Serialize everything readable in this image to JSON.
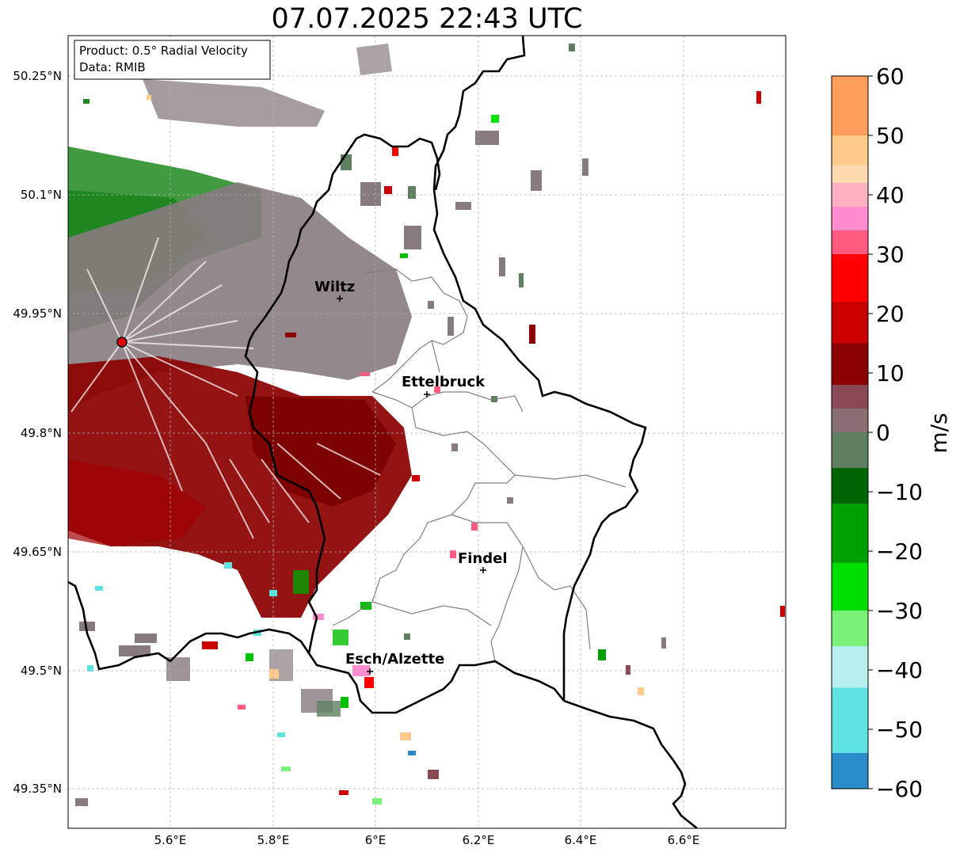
{
  "title": "07.07.2025 22:43 UTC",
  "info_box": {
    "product": "Product: 0.5° Radial Velocity",
    "data": "Data: RMIB"
  },
  "latitude_labels": [
    "50.25°N",
    "50.1°N",
    "49.95°N",
    "49.8°N",
    "49.65°N",
    "49.5°N",
    "49.35°N"
  ],
  "longitude_labels": [
    "5.6°E",
    "5.8°E",
    "6°E",
    "6.2°E",
    "6.4°E",
    "6.6°E"
  ],
  "cities": [
    {
      "name": "Wiltz"
    },
    {
      "name": "Ettelbruck"
    },
    {
      "name": "Findel"
    },
    {
      "name": "Esch/Alzette"
    }
  ],
  "radar_site": "radar-site-marker",
  "colorbar": {
    "unit": "m/s",
    "ticks": [
      "60",
      "50",
      "40",
      "30",
      "20",
      "10",
      "0",
      "−10",
      "−20",
      "−30",
      "−40",
      "−50",
      "−60"
    ],
    "range": [
      -60,
      60
    ],
    "bands": [
      {
        "from": 50,
        "to": 60,
        "color": "#ff9e5a"
      },
      {
        "from": 45,
        "to": 50,
        "color": "#ffc98a"
      },
      {
        "from": 42,
        "to": 45,
        "color": "#ffd9b0"
      },
      {
        "from": 38,
        "to": 42,
        "color": "#ffb0c0"
      },
      {
        "from": 34,
        "to": 38,
        "color": "#ff8ccf"
      },
      {
        "from": 30,
        "to": 34,
        "color": "#ff5a80"
      },
      {
        "from": 22,
        "to": 30,
        "color": "#ff0000"
      },
      {
        "from": 15,
        "to": 22,
        "color": "#cc0000"
      },
      {
        "from": 8,
        "to": 15,
        "color": "#8b0000"
      },
      {
        "from": 4,
        "to": 8,
        "color": "#8a4a55"
      },
      {
        "from": 0,
        "to": 4,
        "color": "#876f74"
      },
      {
        "from": -6,
        "to": 0,
        "color": "#5f8060"
      },
      {
        "from": -12,
        "to": -6,
        "color": "#006400"
      },
      {
        "from": -22,
        "to": -12,
        "color": "#00a000"
      },
      {
        "from": -30,
        "to": -22,
        "color": "#00e000"
      },
      {
        "from": -36,
        "to": -30,
        "color": "#7af27a"
      },
      {
        "from": -43,
        "to": -36,
        "color": "#b7eeee"
      },
      {
        "from": -54,
        "to": -43,
        "color": "#5fe2e2"
      },
      {
        "from": -60,
        "to": -54,
        "color": "#2a8cc8"
      }
    ]
  }
}
